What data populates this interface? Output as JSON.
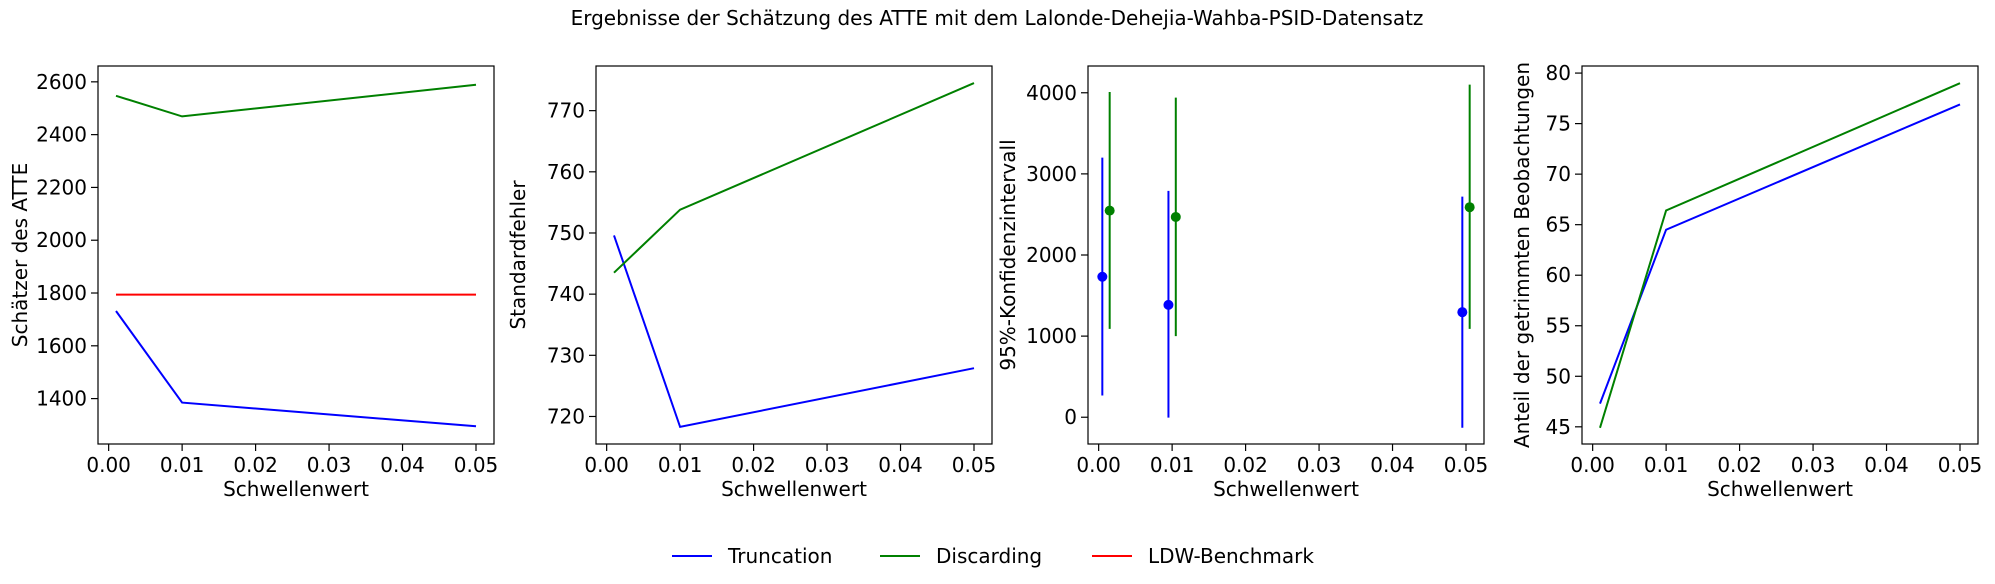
{
  "title": "Ergebnisse der Schätzung des ATTE mit dem Lalonde-Dehejia-Wahba-PSID-Datensatz",
  "legend": {
    "placement": "bottom-center",
    "entries": [
      {
        "label": "Truncation",
        "color": "#0000ff"
      },
      {
        "label": "Discarding",
        "color": "#008000"
      },
      {
        "label": "LDW-Benchmark",
        "color": "#ff0000"
      }
    ]
  },
  "chart_data": [
    {
      "type": "line",
      "xlabel": "Schwellenwert",
      "ylabel": "Schätzer des ATTE",
      "xlim": [
        -0.00145,
        0.05245
      ],
      "ylim": [
        1228,
        2660
      ],
      "xticks": [
        0.0,
        0.01,
        0.02,
        0.03,
        0.04,
        0.05
      ],
      "xtick_labels": [
        "0.00",
        "0.01",
        "0.02",
        "0.03",
        "0.04",
        "0.05"
      ],
      "yticks": [
        1400,
        1600,
        1800,
        2000,
        2200,
        2400,
        2600
      ],
      "ytick_labels": [
        "1400",
        "1600",
        "1800",
        "2000",
        "2200",
        "2400",
        "2600"
      ],
      "series": [
        {
          "name": "Truncation",
          "color": "#0000ff",
          "x": [
            0.001,
            0.01,
            0.05
          ],
          "y": [
            1732,
            1385,
            1295
          ]
        },
        {
          "name": "Discarding",
          "color": "#008000",
          "x": [
            0.001,
            0.01,
            0.05
          ],
          "y": [
            2547,
            2469,
            2589
          ]
        },
        {
          "name": "LDW-Benchmark",
          "color": "#ff0000",
          "x": [
            0.001,
            0.01,
            0.05
          ],
          "y": [
            1794,
            1794,
            1794
          ]
        }
      ]
    },
    {
      "type": "line",
      "xlabel": "Schwellenwert",
      "ylabel": "Standardfehler",
      "xlim": [
        -0.00145,
        0.05245
      ],
      "ylim": [
        715.5,
        777.3
      ],
      "xticks": [
        0.0,
        0.01,
        0.02,
        0.03,
        0.04,
        0.05
      ],
      "xtick_labels": [
        "0.00",
        "0.01",
        "0.02",
        "0.03",
        "0.04",
        "0.05"
      ],
      "yticks": [
        720,
        730,
        740,
        750,
        760,
        770
      ],
      "ytick_labels": [
        "720",
        "730",
        "740",
        "750",
        "760",
        "770"
      ],
      "series": [
        {
          "name": "Truncation",
          "color": "#0000ff",
          "x": [
            0.001,
            0.01,
            0.05
          ],
          "y": [
            749.6,
            718.3,
            727.9
          ]
        },
        {
          "name": "Discarding",
          "color": "#008000",
          "x": [
            0.001,
            0.01,
            0.05
          ],
          "y": [
            743.5,
            753.8,
            774.5
          ]
        }
      ]
    },
    {
      "type": "errorbar",
      "xlabel": "Schwellenwert",
      "ylabel": "95%-Konfidenzintervall",
      "xlim": [
        -0.00145,
        0.05245
      ],
      "ylim": [
        -330,
        4330
      ],
      "xticks": [
        0.0,
        0.01,
        0.02,
        0.03,
        0.04,
        0.05
      ],
      "xtick_labels": [
        "0.00",
        "0.01",
        "0.02",
        "0.03",
        "0.04",
        "0.05"
      ],
      "yticks": [
        0,
        1000,
        2000,
        3000,
        4000
      ],
      "ytick_labels": [
        "0",
        "1000",
        "2000",
        "3000",
        "4000"
      ],
      "series": [
        {
          "name": "Truncation",
          "color": "#0000ff",
          "x": [
            0.0005,
            0.0095,
            0.0495
          ],
          "y": [
            1732,
            1385,
            1295
          ],
          "lower": [
            268,
            -5,
            -130
          ],
          "upper": [
            3200,
            2790,
            2720
          ]
        },
        {
          "name": "Discarding",
          "color": "#008000",
          "x": [
            0.0015,
            0.0105,
            0.0505
          ],
          "y": [
            2547,
            2469,
            2589
          ],
          "lower": [
            1090,
            1000,
            1090
          ],
          "upper": [
            4010,
            3940,
            4100
          ]
        }
      ]
    },
    {
      "type": "line",
      "xlabel": "Schwellenwert",
      "ylabel": "Anteil der getrimmten Beobachtungen",
      "xlim": [
        -0.00145,
        0.05245
      ],
      "ylim": [
        43.3,
        80.7
      ],
      "xticks": [
        0.0,
        0.01,
        0.02,
        0.03,
        0.04,
        0.05
      ],
      "xtick_labels": [
        "0.00",
        "0.01",
        "0.02",
        "0.03",
        "0.04",
        "0.05"
      ],
      "yticks": [
        45,
        50,
        55,
        60,
        65,
        70,
        75,
        80
      ],
      "ytick_labels": [
        "45",
        "50",
        "55",
        "60",
        "65",
        "70",
        "75",
        "80"
      ],
      "series": [
        {
          "name": "Truncation",
          "color": "#0000ff",
          "x": [
            0.001,
            0.01,
            0.05
          ],
          "y": [
            47.3,
            64.5,
            76.9
          ]
        },
        {
          "name": "Discarding",
          "color": "#008000",
          "x": [
            0.001,
            0.01,
            0.05
          ],
          "y": [
            44.9,
            66.4,
            79.0
          ]
        }
      ]
    }
  ]
}
